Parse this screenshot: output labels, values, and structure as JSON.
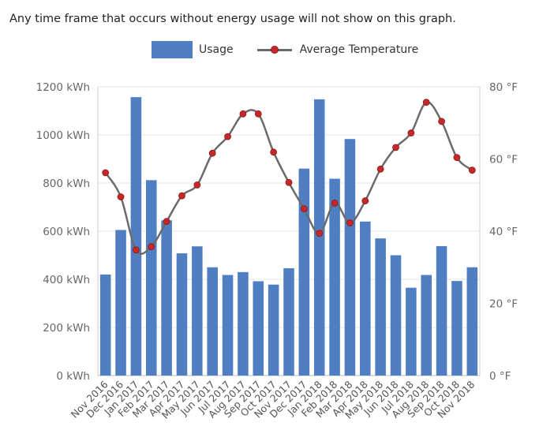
{
  "note": "Any time frame that occurs without energy usage will not show on this graph.",
  "legend": {
    "usage": "Usage",
    "temperature": "Average Temperature"
  },
  "colors": {
    "bar": "#4f7fc2",
    "line": "#6b6b6b",
    "marker": "#c62828",
    "grid": "#e6e6e6"
  },
  "chart_data": {
    "type": "bar",
    "title": "",
    "categories": [
      "Nov 2016",
      "Dec 2016",
      "Jan 2017",
      "Feb 2017",
      "Mar 2017",
      "Apr 2017",
      "May 2017",
      "Jun 2017",
      "Jul 2017",
      "Aug 2017",
      "Sep 2017",
      "Oct 2017",
      "Nov 2017",
      "Dec 2017",
      "Jan 2018",
      "Feb 2018",
      "Mar 2018",
      "Apr 2018",
      "May 2018",
      "Jun 2018",
      "Jul 2018",
      "Aug 2018",
      "Sep 2018",
      "Oct 2018",
      "Nov 2018"
    ],
    "series": [
      {
        "name": "Usage",
        "type": "bar",
        "axis": "left",
        "values": [
          420,
          605,
          1157,
          812,
          645,
          508,
          537,
          450,
          418,
          430,
          392,
          378,
          446,
          860,
          1148,
          818,
          983,
          640,
          570,
          500,
          365,
          418,
          538,
          393,
          450
        ]
      },
      {
        "name": "Average Temperature",
        "type": "line",
        "axis": "right",
        "values": [
          56.2,
          49.5,
          34.8,
          35.7,
          42.7,
          49.8,
          52.8,
          61.6,
          66.2,
          72.5,
          72.5,
          61.9,
          53.5,
          46.2,
          39.4,
          47.8,
          42.3,
          48.4,
          57.2,
          63.2,
          67.2,
          75.7,
          70.4,
          60.4,
          56.9
        ]
      }
    ],
    "ylim_left": [
      0,
      1200
    ],
    "yticks_left": [
      "0 kWh",
      "200 kWh",
      "400 kWh",
      "600 kWh",
      "800 kWh",
      "1000 kWh",
      "1200 kWh"
    ],
    "ylim_right": [
      0,
      80
    ],
    "yticks_right": [
      "0 °F",
      "20 °F",
      "40 °F",
      "60 °F",
      "80 °F"
    ],
    "grid": true,
    "legend_position": "top"
  }
}
